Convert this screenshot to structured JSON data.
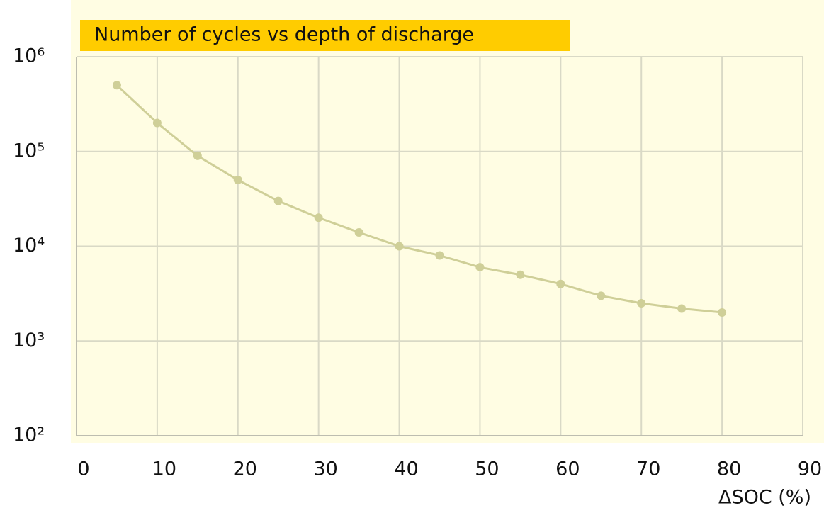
{
  "chart_data": {
    "type": "line",
    "title": "Number of cycles vs depth of discharge",
    "x_label": "ΔSOC (%)",
    "series": [
      {
        "name": null,
        "color": "#cfcf98",
        "x": [
          5,
          10,
          15,
          20,
          25,
          30,
          35,
          40,
          45,
          50,
          55,
          60,
          65,
          70,
          75,
          80
        ],
        "values": [
          500000,
          200000,
          90000,
          50000,
          30000,
          20000,
          14000,
          10000,
          8000,
          6000,
          5000,
          4000,
          3000,
          2500,
          2200,
          2000
        ]
      }
    ],
    "xlim": [
      0,
      90
    ],
    "xticks": [
      0,
      10,
      20,
      30,
      40,
      50,
      60,
      70,
      80,
      90
    ],
    "ylim": [
      100,
      1000000
    ],
    "log_y": true,
    "yticks": [
      {
        "value": 100,
        "label": "10²"
      },
      {
        "value": 1000,
        "label": "10³"
      },
      {
        "value": 10000,
        "label": "10⁴"
      },
      {
        "value": 100000,
        "label": "10⁵"
      },
      {
        "value": 1000000,
        "label": "10⁶"
      }
    ],
    "grid": true
  }
}
